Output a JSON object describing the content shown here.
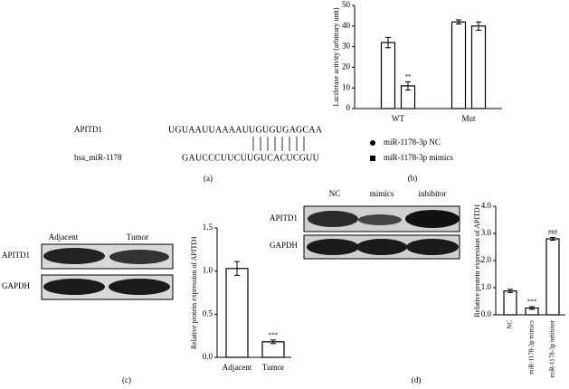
{
  "figure": {
    "panel_a": {
      "label": "(a)",
      "target_name": "APITD1",
      "target_seq": "UGUAAUUAAAAUUGUGUGAGCAA",
      "mirna_name": "hsa_miR-1178",
      "mirna_seq": "GAUCCCUUCUUGUCACUCGUU"
    },
    "panel_b": {
      "label": "(b)"
    },
    "panel_c": {
      "label": "(c)",
      "lanes": [
        "Adjacent",
        "Tumor"
      ],
      "rows": [
        "APITD1",
        "GAPDH"
      ]
    },
    "panel_d": {
      "label": "(d)",
      "lanes": [
        "NC",
        "mimics",
        "inhibitor"
      ],
      "rows": [
        "APITD1",
        "GAPDH"
      ]
    }
  },
  "chart_data": [
    {
      "type": "bar",
      "ylabel": "Luciferase activity (arbitrary unit)",
      "categories": [
        "WT",
        "Mut"
      ],
      "series": [
        {
          "name": "miR-1178-3p NC",
          "color": "#ffffff",
          "edgecolor": "#000000",
          "marker": "circle",
          "values": [
            32,
            42
          ],
          "errors": [
            2.5,
            1
          ],
          "significance": [
            null,
            null
          ]
        },
        {
          "name": "miR-1178-3p mimics",
          "color": "#ffffff",
          "edgecolor": "#000000",
          "marker": "square",
          "values": [
            11,
            40
          ],
          "errors": [
            2,
            2
          ],
          "significance": [
            "**",
            null
          ]
        }
      ],
      "ylim": [
        0,
        50
      ],
      "yticks": [
        0,
        10,
        20,
        30,
        40,
        50
      ],
      "legend": "bottom"
    },
    {
      "type": "bar",
      "ylabel": "Relative protein expression of APITD1",
      "categories": [
        "Adjacent",
        "Tumor"
      ],
      "values": [
        1.03,
        0.18
      ],
      "errors": [
        0.08,
        0.02
      ],
      "significance": [
        null,
        "***"
      ],
      "color": "#ffffff",
      "edgecolor": "#000000",
      "ylim": [
        0,
        1.5
      ],
      "yticks": [
        {
          "value": 0,
          "label": "0.0"
        },
        {
          "value": 0.5,
          "label": "0.5"
        },
        {
          "value": 1,
          "label": "1.0"
        },
        {
          "value": 1.5,
          "label": "1.5"
        }
      ]
    },
    {
      "type": "bar",
      "ylabel": "Relative protein expression of APITD1",
      "categories": [
        "NC",
        "miR-1178-3p mimics",
        "miR-1178-3p inhibitor"
      ],
      "values": [
        0.88,
        0.25,
        2.8
      ],
      "errors": [
        0.06,
        0.05,
        0.05
      ],
      "significance": [
        null,
        "***",
        "###"
      ],
      "color": "#ffffff",
      "edgecolor": "#000000",
      "ylim": [
        0,
        4
      ],
      "yticks": [
        {
          "value": 0,
          "label": "0.0"
        },
        {
          "value": 1,
          "label": "1.0"
        },
        {
          "value": 2,
          "label": "2.0"
        },
        {
          "value": 3,
          "label": "3.0"
        },
        {
          "value": 4,
          "label": "4.0"
        }
      ]
    }
  ]
}
